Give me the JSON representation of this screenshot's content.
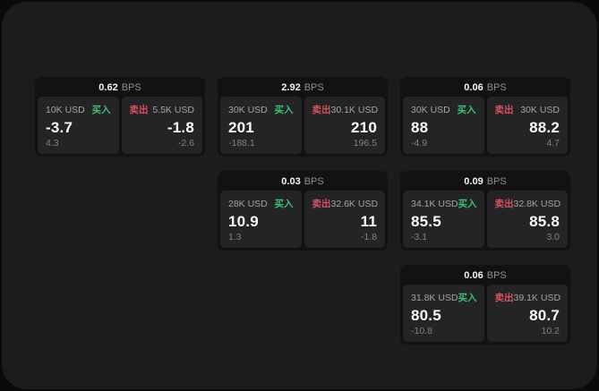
{
  "colors": {
    "outer_bg": "#0a0a0b",
    "canvas_bg": "#1c1c1e",
    "card_bg": "#121214",
    "panel_bg": "#242427",
    "text_muted": "#8e8e93",
    "text_label": "#a3a3a8",
    "text_sub": "#808086",
    "buy_green": "#3fbf77",
    "sell_red": "#d8515f"
  },
  "labels": {
    "bps_unit": "BPS",
    "buy": "买入",
    "sell": "卖出"
  },
  "cards": [
    {
      "col": 1,
      "row": 1,
      "bps": "0.62",
      "buy": {
        "size": "10K USD",
        "price": "-3.7",
        "sub": "4.3"
      },
      "sell": {
        "size": "5.5K USD",
        "price": "-1.8",
        "sub": "-2.6"
      }
    },
    {
      "col": 2,
      "row": 1,
      "bps": "2.92",
      "buy": {
        "size": "30K USD",
        "price": "201",
        "sub": "-188.1"
      },
      "sell": {
        "size": "30.1K USD",
        "price": "210",
        "sub": "196.5"
      }
    },
    {
      "col": 3,
      "row": 1,
      "bps": "0.06",
      "buy": {
        "size": "30K USD",
        "price": "88",
        "sub": "-4.9"
      },
      "sell": {
        "size": "30K USD",
        "price": "88.2",
        "sub": "4.7"
      }
    },
    {
      "col": 2,
      "row": 2,
      "bps": "0.03",
      "buy": {
        "size": "28K USD",
        "price": "10.9",
        "sub": "1.3"
      },
      "sell": {
        "size": "32.6K USD",
        "price": "11",
        "sub": "-1.8"
      }
    },
    {
      "col": 3,
      "row": 2,
      "bps": "0.09",
      "buy": {
        "size": "34.1K USD",
        "price": "85.5",
        "sub": "-3.1"
      },
      "sell": {
        "size": "32.8K USD",
        "price": "85.8",
        "sub": "3.0"
      }
    },
    {
      "col": 3,
      "row": 3,
      "bps": "0.06",
      "buy": {
        "size": "31.8K USD",
        "price": "80.5",
        "sub": "-10.8"
      },
      "sell": {
        "size": "39.1K USD",
        "price": "80.7",
        "sub": "10.2"
      }
    }
  ]
}
